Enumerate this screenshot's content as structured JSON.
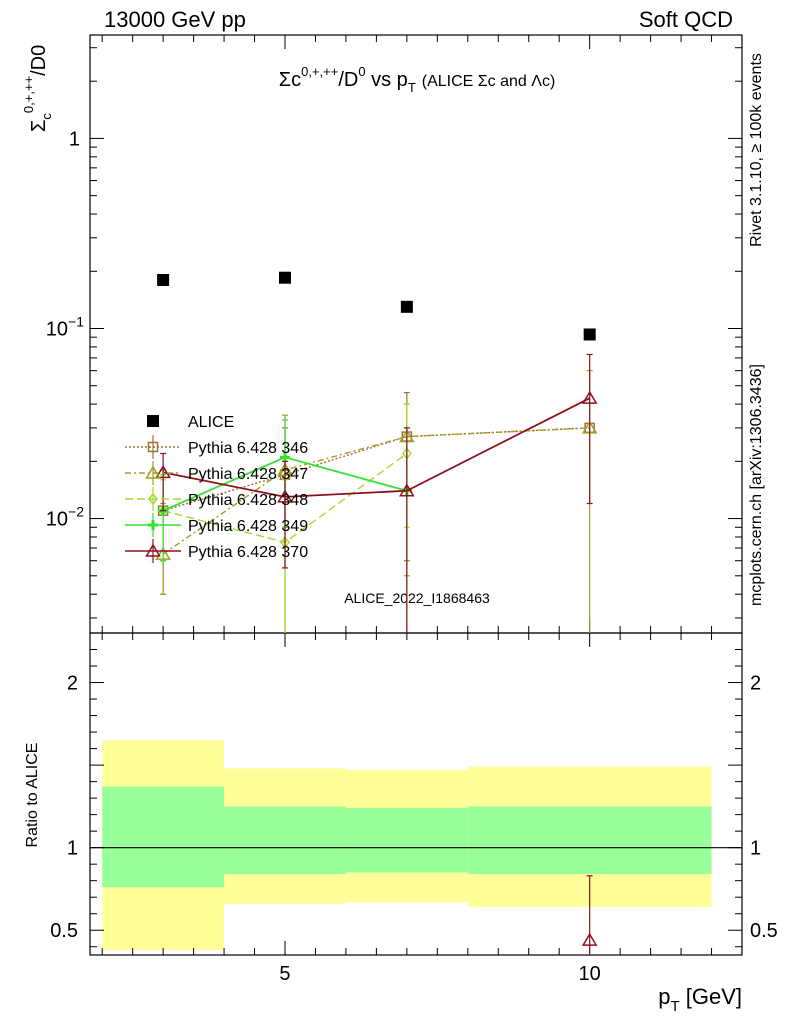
{
  "header": {
    "left": "13000 GeV pp",
    "right": "Soft QCD"
  },
  "side": {
    "rivet": "Rivet 3.1.10, ≥ 100k events",
    "mcplots": "mcplots.cern.ch [arXiv:1306.3436]"
  },
  "watermark": "ALICE_2022_I1868463",
  "colors": {
    "alice": "#000000",
    "p346": "#a0703a",
    "p347": "#a0a020",
    "p348": "#a4dc2c",
    "p349": "#34e034",
    "p370": "#901020",
    "band_outer": "#ffff99",
    "band_inner": "#99ff99"
  },
  "chart_data": [
    {
      "type": "scatter",
      "title": "Σc0,+,++/D0 vs pT (ALICE Σc and Λc)",
      "title_parts": {
        "main": "Σc",
        "sup1": "0,+,++",
        "mid": "/D",
        "sup2": "0",
        "vs": " vs p",
        "sub": "T",
        "note": "(ALICE Σc and Λc)"
      },
      "ylabel": "Σc0,+,++/D0",
      "ylabel_parts": {
        "main": "Σ",
        "sub": "c",
        "sup": "0,+,++",
        "rest": "/D0"
      },
      "yscale": "log",
      "xlim": [
        1.8,
        12.5
      ],
      "ylim": [
        0.0025,
        3.5
      ],
      "yticks_labeled": [
        {
          "value": 1,
          "label": "1"
        },
        {
          "value": 0.1,
          "label": "10",
          "exp": "−1"
        },
        {
          "value": 0.01,
          "label": "10",
          "exp": "−2"
        }
      ],
      "legend_position": "middle-left",
      "series": [
        {
          "name": "ALICE",
          "key": "alice",
          "marker": "filled-square",
          "x": [
            3,
            5,
            7,
            10
          ],
          "y": [
            0.18,
            0.185,
            0.13,
            0.093
          ],
          "xerr": [
            1,
            1,
            1,
            2
          ]
        },
        {
          "name": "Pythia 6.428 346",
          "key": "p346",
          "marker": "open-square",
          "dash": "2,2",
          "x": [
            3,
            5,
            7,
            10
          ],
          "y": [
            0.011,
            0.017,
            0.027,
            0.03
          ],
          "ylo": [
            0.004,
            0.009,
            0.006,
            null
          ],
          "yhi": [
            0.018,
            0.03,
            0.046,
            null
          ]
        },
        {
          "name": "Pythia 6.428 347",
          "key": "p347",
          "marker": "open-triangle",
          "dash": "6,3,2,3",
          "x": [
            3,
            5,
            7,
            10
          ],
          "y": [
            0.0065,
            0.018,
            0.027,
            0.03
          ],
          "ylo": [
            0.004,
            0.0,
            0.005,
            0.0
          ],
          "yhi": [
            0.012,
            0.035,
            0.04,
            0.06
          ]
        },
        {
          "name": "Pythia 6.428 348",
          "key": "p348",
          "marker": "open-diamond",
          "dash": "8,4",
          "x": [
            3,
            5,
            7
          ],
          "y": [
            0.011,
            0.0075,
            0.022
          ],
          "ylo": [
            0.006,
            0.0,
            0.009
          ],
          "yhi": [
            0.016,
            0.016,
            0.04
          ]
        },
        {
          "name": "Pythia 6.428 349",
          "key": "p349",
          "marker": "cross",
          "dash": "",
          "x": [
            3,
            5,
            7
          ],
          "y": [
            0.011,
            0.021,
            0.014
          ],
          "ylo": [
            0.006,
            0.009,
            0.0
          ],
          "yhi": [
            0.017,
            0.033,
            0.03
          ]
        },
        {
          "name": "Pythia 6.428 370",
          "key": "p370",
          "marker": "open-triangle",
          "dash": "",
          "x": [
            3,
            5,
            7,
            10
          ],
          "y": [
            0.0175,
            0.013,
            0.014,
            0.043
          ],
          "ylo": [
            0.011,
            0.0055,
            0.0,
            0.012
          ],
          "yhi": [
            0.022,
            0.02,
            0.03,
            0.073
          ]
        }
      ]
    },
    {
      "type": "area",
      "ylabel": "Ratio to ALICE",
      "xlabel": "pT [GeV]",
      "xlabel_parts": {
        "main": "p",
        "sub": "T",
        "rest": " [GeV]"
      },
      "xlim": [
        1.8,
        12.5
      ],
      "ylim": [
        0.35,
        2.3
      ],
      "xticks": [
        5,
        10
      ],
      "yticks": [
        0.5,
        1,
        2
      ],
      "reference_line": 1,
      "bands": [
        {
          "xlo": 2,
          "xhi": 4,
          "outer": [
            0.38,
            1.65
          ],
          "inner": [
            0.76,
            1.37
          ]
        },
        {
          "xlo": 4,
          "xhi": 6,
          "outer": [
            0.66,
            1.48
          ],
          "inner": [
            0.84,
            1.25
          ]
        },
        {
          "xlo": 6,
          "xhi": 8,
          "outer": [
            0.67,
            1.47
          ],
          "inner": [
            0.85,
            1.24
          ]
        },
        {
          "xlo": 8,
          "xhi": 12,
          "outer": [
            0.64,
            1.49
          ],
          "inner": [
            0.84,
            1.25
          ]
        }
      ],
      "series": [
        {
          "name": "Pythia 6.428 370",
          "key": "p370",
          "marker": "open-triangle",
          "x": [
            10
          ],
          "y": [
            0.44
          ],
          "ylo": [
            0.0
          ],
          "yhi": [
            0.83
          ]
        }
      ]
    }
  ]
}
